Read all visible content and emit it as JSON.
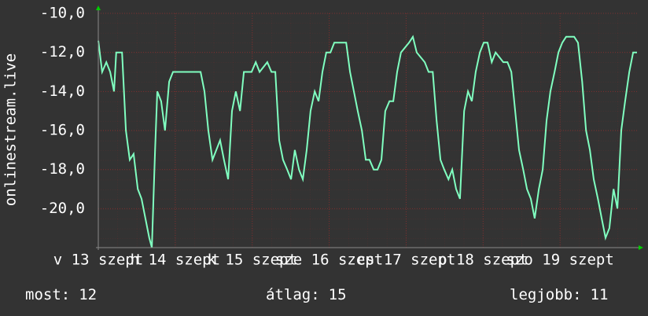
{
  "chart_data": {
    "type": "line",
    "y_label": "onlinestream.live",
    "x": [
      0,
      1.2,
      2.5,
      3.7,
      4.9,
      5.6,
      7.4,
      8.6,
      9.8,
      11.0,
      12.3,
      13.5,
      14.7,
      15.9,
      16.7,
      17.7,
      18.4,
      19.6,
      20.8,
      22.1,
      23.3,
      25.8,
      28.2,
      31.9,
      33.1,
      34.3,
      35.6,
      38.0,
      39.2,
      40.5,
      41.7,
      42.9,
      44.2,
      45.4,
      47.8,
      49.1,
      50.3,
      52.7,
      54.0,
      55.2,
      56.4,
      57.6,
      58.9,
      60.1,
      61.3,
      62.6,
      63.8,
      65.0,
      66.2,
      67.5,
      68.7,
      69.9,
      71.1,
      72.4,
      73.6,
      74.8,
      77.3,
      78.5,
      79.7,
      80.9,
      82.2,
      83.4,
      84.6,
      85.9,
      87.1,
      88.3,
      89.5,
      90.8,
      92.0,
      93.2,
      94.4,
      96.9,
      98.1,
      99.3,
      101.8,
      103.0,
      104.3,
      105.5,
      106.7,
      107.9,
      109.2,
      110.4,
      111.6,
      112.8,
      114.1,
      115.3,
      116.5,
      117.7,
      119.0,
      120.2,
      121.4,
      122.7,
      123.9,
      126.3,
      127.6,
      128.8,
      130.0,
      131.2,
      132.5,
      133.7,
      134.9,
      136.1,
      137.4,
      138.6,
      139.8,
      141.0,
      142.3,
      143.5,
      144.7,
      145.9,
      148.4,
      149.6,
      150.9,
      152.1,
      153.3,
      154.5,
      155.8,
      157.0,
      158.2,
      159.4,
      160.7,
      161.9,
      163.1,
      164.3,
      165.6,
      166.8,
      168
    ],
    "series": [
      {
        "color": "#80ffc0",
        "values": [
          -11.4,
          -13,
          -12.5,
          -13,
          -14,
          -12,
          -12,
          -16,
          -17.5,
          -17.2,
          -19,
          -19.5,
          -20.5,
          -21.5,
          -22,
          -17,
          -14,
          -14.5,
          -16,
          -13.5,
          -13,
          -13,
          -13,
          -13,
          -14,
          -16,
          -17.5,
          -16.5,
          -17.5,
          -18.5,
          -15,
          -14,
          -15,
          -13,
          -13,
          -12.5,
          -13,
          -12.5,
          -13,
          -13,
          -16.5,
          -17.5,
          -18,
          -18.5,
          -17,
          -18,
          -18.5,
          -17,
          -15,
          -14,
          -14.5,
          -13,
          -12,
          -12,
          -11.5,
          -11.5,
          -11.5,
          -13,
          -14,
          -15,
          -16,
          -17.5,
          -17.5,
          -18,
          -18,
          -17.5,
          -15,
          -14.5,
          -14.5,
          -13,
          -12,
          -11.5,
          -11.2,
          -12,
          -12.5,
          -13,
          -13,
          -15.5,
          -17.5,
          -18,
          -18.5,
          -18,
          -19,
          -19.5,
          -15,
          -14,
          -14.5,
          -13,
          -12,
          -11.5,
          -11.5,
          -12.5,
          -12,
          -12.5,
          -12.5,
          -13,
          -15,
          -17,
          -18,
          -19,
          -19.5,
          -20.5,
          -19,
          -18,
          -15.5,
          -14,
          -13,
          -12,
          -11.5,
          -11.2,
          -11.2,
          -11.5,
          -13.5,
          -16,
          -17,
          -18.5,
          -19.5,
          -20.5,
          -21.5,
          -21,
          -19,
          -20,
          -16,
          -14.5,
          -13,
          -12,
          -12
        ]
      }
    ],
    "xlim": [
      0,
      168
    ],
    "xticks": [
      {
        "value": 0,
        "label": "v 13 szept"
      },
      {
        "value": 24,
        "label": "h 14 szept"
      },
      {
        "value": 48,
        "label": "k 15 szept"
      },
      {
        "value": 72,
        "label": "sze 16 szept"
      },
      {
        "value": 96,
        "label": "cs 17 szept"
      },
      {
        "value": 120,
        "label": "p 18 szept"
      },
      {
        "value": 144,
        "label": "szo 19 szept"
      }
    ],
    "ylim": [
      -22,
      -10
    ],
    "yticks": [
      {
        "value": -10,
        "label": "-10,0"
      },
      {
        "value": -12,
        "label": "-12,0"
      },
      {
        "value": -14,
        "label": "-14,0"
      },
      {
        "value": -16,
        "label": "-16,0"
      },
      {
        "value": -18,
        "label": "-18,0"
      },
      {
        "value": -20,
        "label": "-20,0"
      }
    ],
    "grid": true,
    "stats": [
      {
        "label": "most:",
        "value": 12
      },
      {
        "label": "átlag:",
        "value": 15
      },
      {
        "label": "legjobb:",
        "value": 11
      }
    ]
  }
}
